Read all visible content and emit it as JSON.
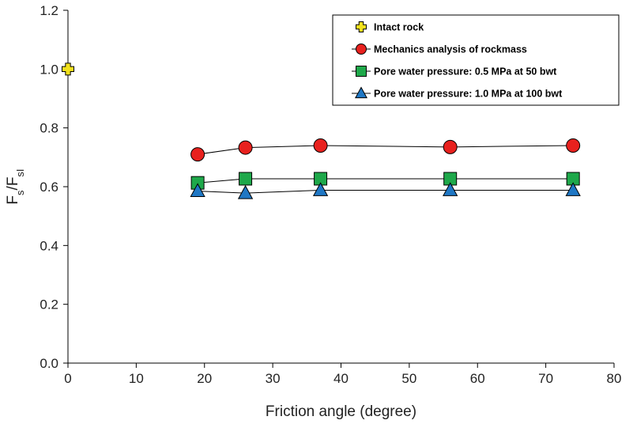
{
  "chart_data": {
    "type": "scatter",
    "xlabel": "Friction angle (degree)",
    "ylabel": {
      "main": "F",
      "sub1": "s",
      "mid": "/F",
      "sub2": "sI"
    },
    "xlim": [
      0,
      80
    ],
    "ylim": [
      0.0,
      1.2
    ],
    "x_ticks": [
      "0",
      "10",
      "20",
      "30",
      "40",
      "50",
      "60",
      "70",
      "80"
    ],
    "y_ticks": [
      "0.0",
      "0.2",
      "0.4",
      "0.6",
      "0.8",
      "1.0",
      "1.2"
    ],
    "grid": false,
    "legend_position": "top-right",
    "series": [
      {
        "name": "Intact rock",
        "marker": "plus",
        "color": "#f2e11d",
        "line": false,
        "x": [
          0
        ],
        "y": [
          1.0
        ]
      },
      {
        "name": "Mechanics analysis of rockmass",
        "marker": "circle",
        "color": "#e8211e",
        "line": true,
        "x": [
          19,
          26,
          37,
          56,
          74
        ],
        "y": [
          0.71,
          0.733,
          0.74,
          0.735,
          0.74
        ]
      },
      {
        "name": "Pore water pressure: 0.5 MPa at 50 bwt",
        "marker": "square",
        "color": "#1ea84a",
        "line": true,
        "x": [
          19,
          26,
          37,
          56,
          74
        ],
        "y": [
          0.613,
          0.627,
          0.627,
          0.627,
          0.627
        ]
      },
      {
        "name": "Pore water pressure: 1.0 MPa at 100 bwt",
        "marker": "triangle",
        "color": "#1f77c4",
        "line": true,
        "x": [
          19,
          26,
          37,
          56,
          74
        ],
        "y": [
          0.585,
          0.578,
          0.588,
          0.588,
          0.588
        ]
      }
    ]
  }
}
